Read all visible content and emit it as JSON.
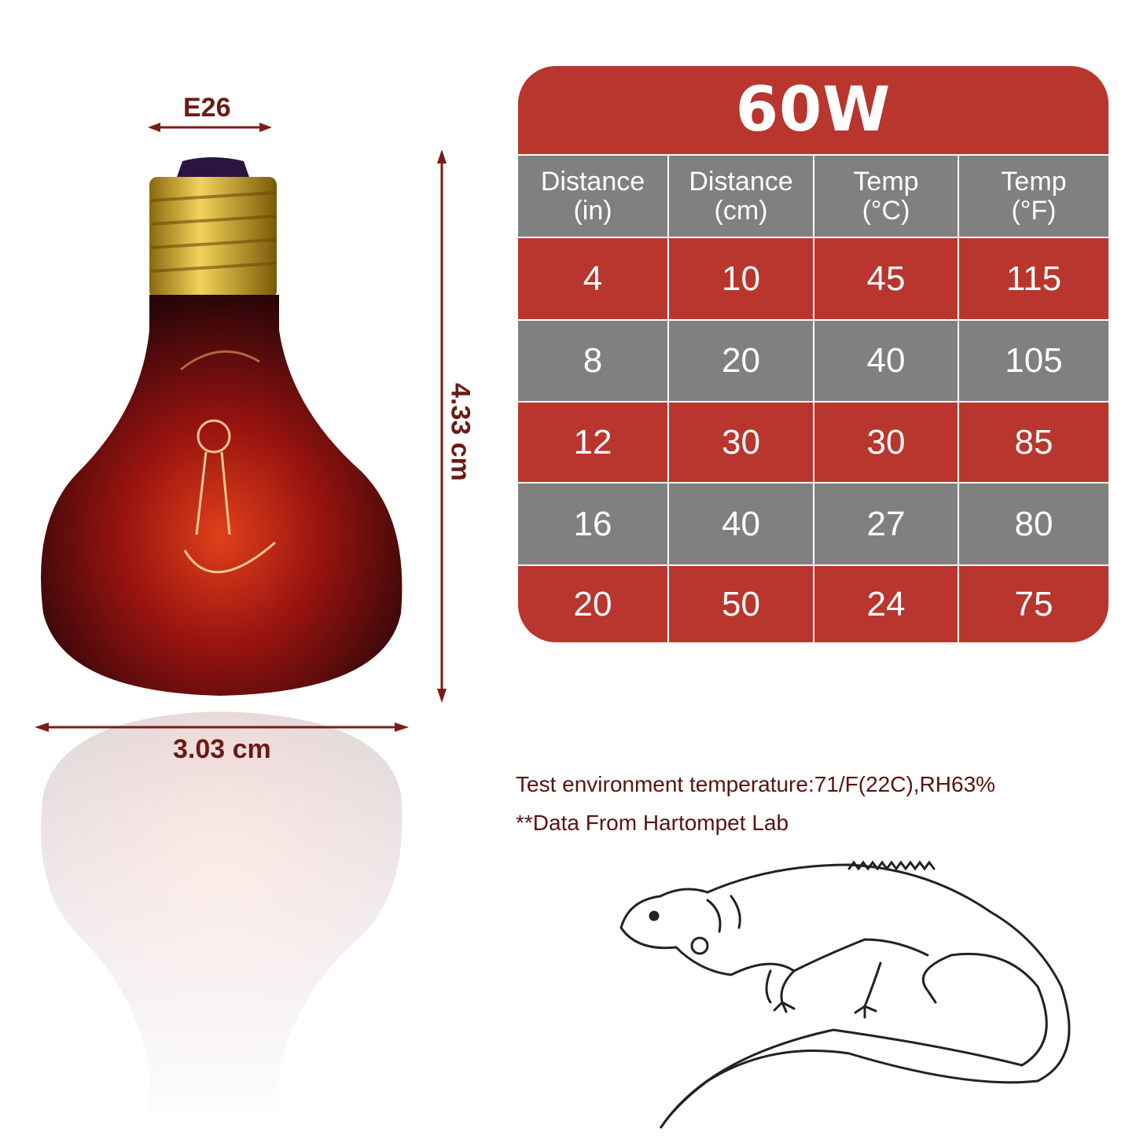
{
  "colors": {
    "red": "#b8362d",
    "grey": "#808080",
    "text": "#5a1212",
    "arrow": "#7a1c18"
  },
  "dimensions": {
    "base": "E26",
    "height": "4.33 cm",
    "width": "3.03 cm"
  },
  "table": {
    "title": "60W",
    "headers": [
      [
        "Distance",
        "(in)"
      ],
      [
        "Distance",
        "(cm)"
      ],
      [
        "Temp",
        "(°C)"
      ],
      [
        "Temp",
        "(°F)"
      ]
    ],
    "rows": [
      [
        "4",
        "10",
        "45",
        "115"
      ],
      [
        "8",
        "20",
        "40",
        "105"
      ],
      [
        "12",
        "30",
        "30",
        "85"
      ],
      [
        "16",
        "40",
        "27",
        "80"
      ],
      [
        "20",
        "50",
        "24",
        "75"
      ]
    ]
  },
  "notes": {
    "environment": "Test environment temperature:71/F(22C),RH63%",
    "source": "**Data From Hartompet Lab"
  }
}
